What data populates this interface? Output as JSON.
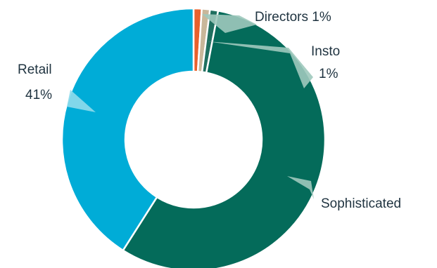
{
  "chart_data": {
    "type": "pie",
    "variant": "donut",
    "title": "",
    "slices": [
      {
        "name": "",
        "value": 1,
        "color": "#e8612c"
      },
      {
        "name": "Directors",
        "value": 1,
        "label": "Directors 1%",
        "color": "#c9b79a"
      },
      {
        "name": "Insto",
        "value": 1,
        "label_line1": "Insto",
        "label_line2": "1%",
        "color": "#1f6f5f"
      },
      {
        "name": "Sophisticated",
        "value": 56,
        "label": "Sophisticated",
        "color": "#046b5a"
      },
      {
        "name": "Retail",
        "value": 41,
        "label_line1": "Retail",
        "label_line2": "41%",
        "color": "#00acd7"
      }
    ]
  }
}
